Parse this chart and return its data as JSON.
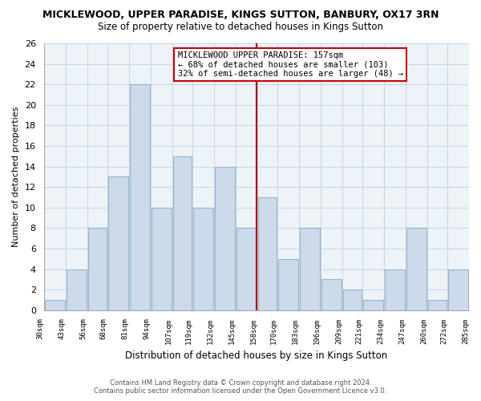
{
  "title": "MICKLEWOOD, UPPER PARADISE, KINGS SUTTON, BANBURY, OX17 3RN",
  "subtitle": "Size of property relative to detached houses in Kings Sutton",
  "xlabel": "Distribution of detached houses by size in Kings Sutton",
  "ylabel": "Number of detached properties",
  "bar_color": "#ccdaea",
  "bar_edge_color": "#9ab4cc",
  "bins": [
    30,
    43,
    56,
    68,
    81,
    94,
    107,
    119,
    132,
    145,
    158,
    170,
    183,
    196,
    209,
    221,
    234,
    247,
    260,
    272,
    285
  ],
  "counts": [
    1,
    4,
    8,
    13,
    22,
    10,
    15,
    10,
    14,
    8,
    11,
    5,
    8,
    3,
    2,
    1,
    4,
    8,
    1,
    4
  ],
  "tick_labels": [
    "30sqm",
    "43sqm",
    "56sqm",
    "68sqm",
    "81sqm",
    "94sqm",
    "107sqm",
    "119sqm",
    "132sqm",
    "145sqm",
    "158sqm",
    "170sqm",
    "183sqm",
    "196sqm",
    "209sqm",
    "221sqm",
    "234sqm",
    "247sqm",
    "260sqm",
    "272sqm",
    "285sqm"
  ],
  "ylim": [
    0,
    26
  ],
  "yticks": [
    0,
    2,
    4,
    6,
    8,
    10,
    12,
    14,
    16,
    18,
    20,
    22,
    24,
    26
  ],
  "reference_line_x": 157.5,
  "reference_line_color": "#aa0000",
  "annotation_title": "MICKLEWOOD UPPER PARADISE: 157sqm",
  "annotation_line2": "← 68% of detached houses are smaller (103)",
  "annotation_line3": "32% of semi-detached houses are larger (48) →",
  "annotation_box_color": "#ffffff",
  "annotation_box_edge_color": "#cc0000",
  "footer_line1": "Contains HM Land Registry data © Crown copyright and database right 2024.",
  "footer_line2": "Contains public sector information licensed under the Open Government Licence v3.0.",
  "bg_color": "#ffffff",
  "grid_color": "#c8d8e8",
  "plot_bg_color": "#eef3f8"
}
